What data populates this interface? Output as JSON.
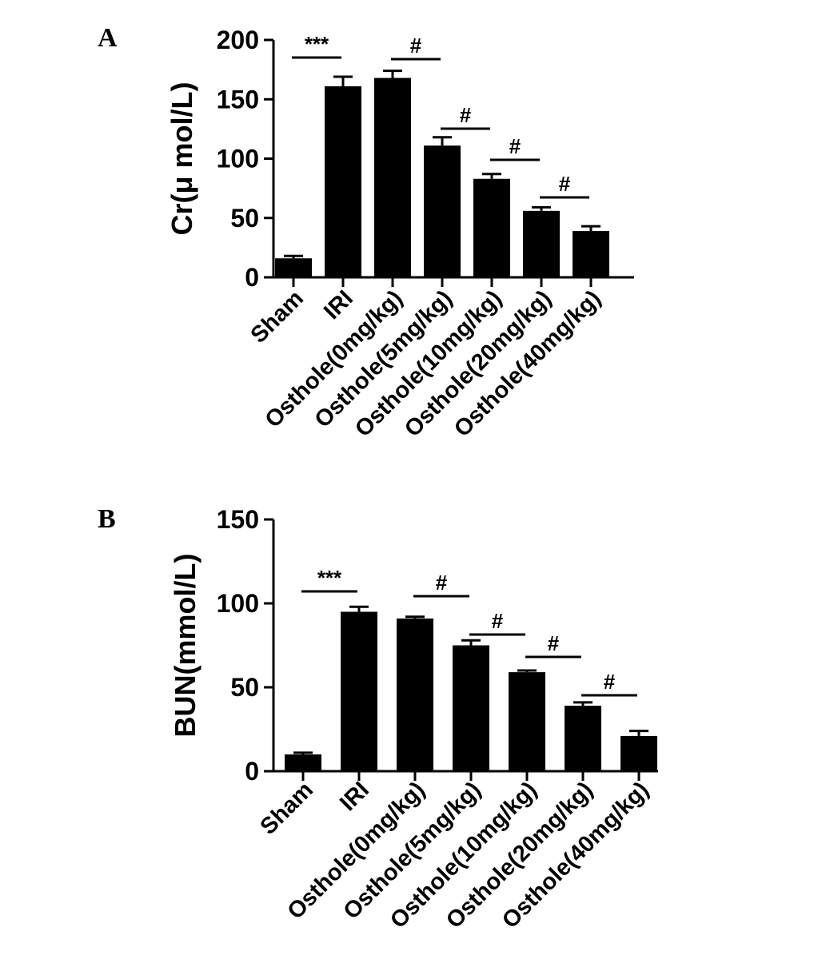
{
  "chart_data": [
    {
      "type": "bar",
      "panel": "A",
      "ylabel": "Cr(μ mol/L)",
      "ylim": [
        0,
        200
      ],
      "yticks": [
        0,
        50,
        100,
        150,
        200
      ],
      "categories": [
        "Sham",
        "IRI",
        "Osthole(0mg/kg)",
        "Osthole(5mg/kg)",
        "Osthole(10mg/kg)",
        "Osthole(20mg/kg)",
        "Osthole(40mg/kg)"
      ],
      "values": [
        16,
        161,
        168,
        111,
        83,
        56,
        39
      ],
      "errors": [
        2,
        8,
        6,
        7,
        4,
        3,
        4
      ],
      "significance": [
        {
          "from": 0,
          "to": 1,
          "label": "***"
        },
        {
          "from": 2,
          "to": 3,
          "label": "#"
        },
        {
          "from": 3,
          "to": 4,
          "label": "#"
        },
        {
          "from": 4,
          "to": 5,
          "label": "#"
        },
        {
          "from": 5,
          "to": 6,
          "label": "#"
        }
      ]
    },
    {
      "type": "bar",
      "panel": "B",
      "ylabel": "BUN(mmol/L)",
      "ylim": [
        0,
        150
      ],
      "yticks": [
        0,
        50,
        100,
        150
      ],
      "categories": [
        "Sham",
        "IRI",
        "Osthole(0mg/kg)",
        "Osthole(5mg/kg)",
        "Osthole(10mg/kg)",
        "Osthole(20mg/kg)",
        "Osthole(40mg/kg)"
      ],
      "values": [
        10,
        95,
        91,
        75,
        59,
        39,
        21
      ],
      "errors": [
        1,
        3,
        1,
        3,
        1,
        2,
        3
      ],
      "significance": [
        {
          "from": 0,
          "to": 1,
          "label": "***"
        },
        {
          "from": 2,
          "to": 3,
          "label": "#"
        },
        {
          "from": 3,
          "to": 4,
          "label": "#"
        },
        {
          "from": 4,
          "to": 5,
          "label": "#"
        },
        {
          "from": 5,
          "to": 6,
          "label": "#"
        }
      ]
    }
  ],
  "colors": {
    "bar": "#000000",
    "axis": "#000000",
    "background": "#ffffff"
  }
}
